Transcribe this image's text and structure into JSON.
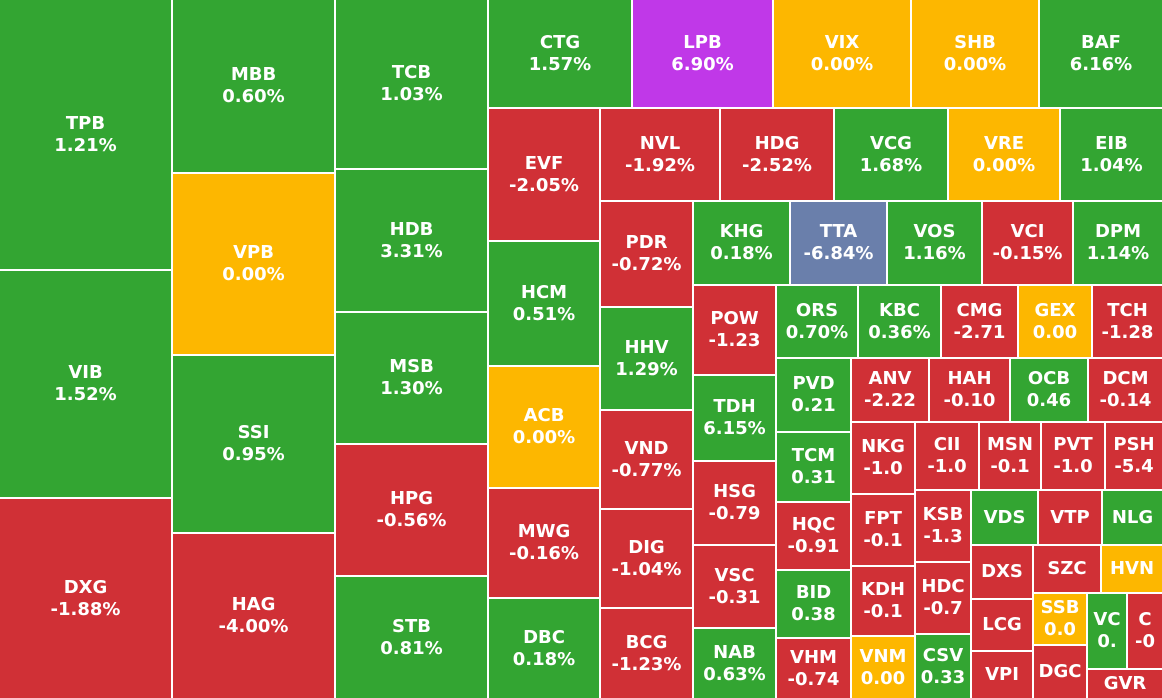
{
  "tiles": [
    {
      "ticker": "TPB",
      "change": "1.21%",
      "color": "#33a532"
    },
    {
      "ticker": "VIB",
      "change": "1.52%",
      "color": "#33a532"
    },
    {
      "ticker": "DXG",
      "change": "-1.88%",
      "color": "#d03036"
    },
    {
      "ticker": "MBB",
      "change": "0.60%",
      "color": "#33a532"
    },
    {
      "ticker": "VPB",
      "change": "0.00%",
      "color": "#fdb700"
    },
    {
      "ticker": "SSI",
      "change": "0.95%",
      "color": "#33a532"
    },
    {
      "ticker": "HAG",
      "change": "-4.00%",
      "color": "#d03036"
    },
    {
      "ticker": "TCB",
      "change": "1.03%",
      "color": "#33a532"
    },
    {
      "ticker": "HDB",
      "change": "3.31%",
      "color": "#33a532"
    },
    {
      "ticker": "MSB",
      "change": "1.30%",
      "color": "#33a532"
    },
    {
      "ticker": "HPG",
      "change": "-0.56%",
      "color": "#d03036"
    },
    {
      "ticker": "STB",
      "change": "0.81%",
      "color": "#33a532"
    },
    {
      "ticker": "CTG",
      "change": "1.57%",
      "color": "#33a532"
    },
    {
      "ticker": "LPB",
      "change": "6.90%",
      "color": "#c038e8"
    },
    {
      "ticker": "VIX",
      "change": "0.00%",
      "color": "#fdb700"
    },
    {
      "ticker": "SHB",
      "change": "0.00%",
      "color": "#fdb700"
    },
    {
      "ticker": "BAF",
      "change": "6.16%",
      "color": "#33a532"
    },
    {
      "ticker": "EVF",
      "change": "-2.05%",
      "color": "#d03036"
    },
    {
      "ticker": "HCM",
      "change": "0.51%",
      "color": "#33a532"
    },
    {
      "ticker": "ACB",
      "change": "0.00%",
      "color": "#fdb700"
    },
    {
      "ticker": "MWG",
      "change": "-0.16%",
      "color": "#d03036"
    },
    {
      "ticker": "DBC",
      "change": "0.18%",
      "color": "#33a532"
    },
    {
      "ticker": "NVL",
      "change": "-1.92%",
      "color": "#d03036"
    },
    {
      "ticker": "HDG",
      "change": "-2.52%",
      "color": "#d03036"
    },
    {
      "ticker": "VCG",
      "change": "1.68%",
      "color": "#33a532"
    },
    {
      "ticker": "VRE",
      "change": "0.00%",
      "color": "#fdb700"
    },
    {
      "ticker": "EIB",
      "change": "1.04%",
      "color": "#33a532"
    },
    {
      "ticker": "PDR",
      "change": "-0.72%",
      "color": "#d03036"
    },
    {
      "ticker": "HHV",
      "change": "1.29%",
      "color": "#33a532"
    },
    {
      "ticker": "VND",
      "change": "-0.77%",
      "color": "#d03036"
    },
    {
      "ticker": "DIG",
      "change": "-1.04%",
      "color": "#d03036"
    },
    {
      "ticker": "BCG",
      "change": "-1.23%",
      "color": "#d03036"
    },
    {
      "ticker": "KHG",
      "change": "0.18%",
      "color": "#33a532"
    },
    {
      "ticker": "TTA",
      "change": "-6.84%",
      "color": "#6a7fab"
    },
    {
      "ticker": "VOS",
      "change": "1.16%",
      "color": "#33a532"
    },
    {
      "ticker": "VCI",
      "change": "-0.15%",
      "color": "#d03036"
    },
    {
      "ticker": "DPM",
      "change": "1.14%",
      "color": "#33a532"
    },
    {
      "ticker": "POW",
      "change": "-1.23",
      "color": "#d03036"
    },
    {
      "ticker": "TDH",
      "change": "6.15%",
      "color": "#33a532"
    },
    {
      "ticker": "HSG",
      "change": "-0.79",
      "color": "#d03036"
    },
    {
      "ticker": "VSC",
      "change": "-0.31",
      "color": "#d03036"
    },
    {
      "ticker": "NAB",
      "change": "0.63%",
      "color": "#33a532"
    },
    {
      "ticker": "ORS",
      "change": "0.70%",
      "color": "#33a532"
    },
    {
      "ticker": "KBC",
      "change": "0.36%",
      "color": "#33a532"
    },
    {
      "ticker": "CMG",
      "change": "-2.71",
      "color": "#d03036"
    },
    {
      "ticker": "GEX",
      "change": "0.00",
      "color": "#fdb700"
    },
    {
      "ticker": "TCH",
      "change": "-1.28",
      "color": "#d03036"
    },
    {
      "ticker": "PVD",
      "change": "0.21",
      "color": "#33a532"
    },
    {
      "ticker": "TCM",
      "change": "0.31",
      "color": "#33a532"
    },
    {
      "ticker": "HQC",
      "change": "-0.91",
      "color": "#d03036"
    },
    {
      "ticker": "BID",
      "change": "0.38",
      "color": "#33a532"
    },
    {
      "ticker": "VHM",
      "change": "-0.74",
      "color": "#d03036"
    },
    {
      "ticker": "ANV",
      "change": "-2.22",
      "color": "#d03036"
    },
    {
      "ticker": "HAH",
      "change": "-0.10",
      "color": "#d03036"
    },
    {
      "ticker": "OCB",
      "change": "0.46",
      "color": "#33a532"
    },
    {
      "ticker": "DCM",
      "change": "-0.14",
      "color": "#d03036"
    },
    {
      "ticker": "NKG",
      "change": "-1.0",
      "color": "#d03036"
    },
    {
      "ticker": "CII",
      "change": "-1.0",
      "color": "#d03036"
    },
    {
      "ticker": "MSN",
      "change": "-0.1",
      "color": "#d03036"
    },
    {
      "ticker": "PVT",
      "change": "-1.0",
      "color": "#d03036"
    },
    {
      "ticker": "PSH",
      "change": "-5.4",
      "color": "#d03036"
    },
    {
      "ticker": "FPT",
      "change": "-0.1",
      "color": "#d03036"
    },
    {
      "ticker": "KDH",
      "change": "-0.1",
      "color": "#d03036"
    },
    {
      "ticker": "VNM",
      "change": "0.00",
      "color": "#fdb700"
    },
    {
      "ticker": "KSB",
      "change": "-1.3",
      "color": "#d03036"
    },
    {
      "ticker": "HDC",
      "change": "-0.7",
      "color": "#d03036"
    },
    {
      "ticker": "CSV",
      "change": "0.33",
      "color": "#33a532"
    },
    {
      "ticker": "VDS",
      "color": "#33a532"
    },
    {
      "ticker": "VTP",
      "color": "#d03036"
    },
    {
      "ticker": "NLG",
      "color": "#33a532"
    },
    {
      "ticker": "DXS",
      "color": "#d03036"
    },
    {
      "ticker": "LCG",
      "color": "#d03036"
    },
    {
      "ticker": "VPI",
      "color": "#d03036"
    },
    {
      "ticker": "SZC",
      "color": "#d03036"
    },
    {
      "ticker": "HVN",
      "color": "#fdb700"
    },
    {
      "ticker": "SSB",
      "change": "0.0",
      "color": "#fdb700"
    },
    {
      "ticker": "DGC",
      "color": "#d03036"
    },
    {
      "ticker": "VC",
      "change": "0.",
      "color": "#33a532"
    },
    {
      "ticker": "C",
      "change": "-0",
      "color": "#d03036"
    },
    {
      "ticker": "GVR",
      "color": "#d03036"
    }
  ]
}
